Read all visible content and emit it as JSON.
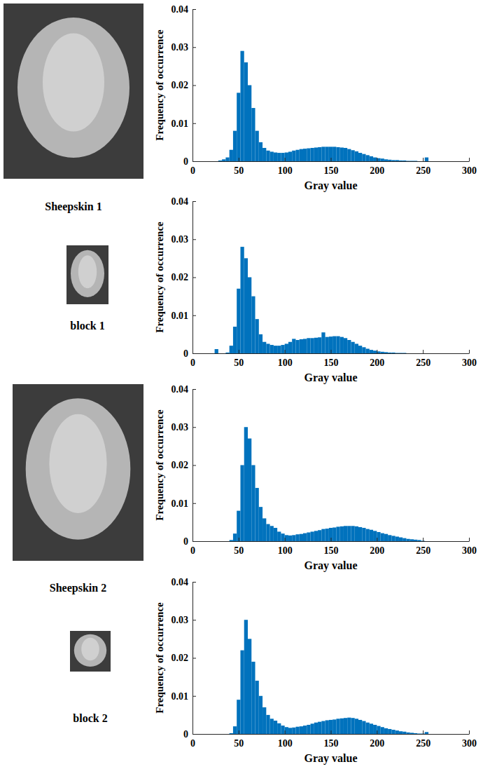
{
  "chart_data": [
    {
      "type": "histogram",
      "title": "Sheepskin 1",
      "x_label": "Gray value",
      "y_label": "Frequency of occurrence",
      "color": "#0072bd",
      "grid": false,
      "xlim": [
        0,
        300
      ],
      "xticks": [
        0,
        50,
        100,
        150,
        200,
        250,
        300
      ],
      "ylim": [
        0,
        0.04
      ],
      "yticks": [
        0,
        0.01,
        0.02,
        0.03,
        0.04
      ],
      "bins": [
        20,
        24,
        28,
        32,
        36,
        40,
        44,
        48,
        52,
        56,
        60,
        64,
        68,
        72,
        76,
        80,
        84,
        88,
        92,
        96,
        100,
        104,
        108,
        112,
        116,
        120,
        124,
        128,
        132,
        136,
        140,
        144,
        148,
        152,
        156,
        160,
        164,
        168,
        172,
        176,
        180,
        184,
        188,
        192,
        196,
        200,
        204,
        208,
        212,
        216,
        220,
        224,
        228,
        232,
        236,
        240,
        244,
        248,
        252,
        256
      ],
      "values": [
        0,
        0,
        0.0002,
        0.0005,
        0.001,
        0.003,
        0.008,
        0.018,
        0.029,
        0.026,
        0.02,
        0.014,
        0.008,
        0.005,
        0.0035,
        0.0028,
        0.0025,
        0.0023,
        0.0022,
        0.0022,
        0.0023,
        0.0025,
        0.0028,
        0.003,
        0.0032,
        0.0033,
        0.0034,
        0.0035,
        0.0036,
        0.0037,
        0.0038,
        0.0038,
        0.0038,
        0.0038,
        0.0037,
        0.0036,
        0.0035,
        0.0032,
        0.0029,
        0.0026,
        0.0022,
        0.0019,
        0.0016,
        0.0013,
        0.001,
        0.0008,
        0.0007,
        0.0005,
        0.0004,
        0.0003,
        0.0003,
        0.0002,
        0.0002,
        0.0001,
        0.0001,
        0.0001,
        0,
        0,
        0.001
      ]
    },
    {
      "type": "histogram",
      "title": "block 1",
      "x_label": "Gray value",
      "y_label": "Frequency of occurrence",
      "color": "#0072bd",
      "grid": false,
      "xlim": [
        0,
        300
      ],
      "xticks": [
        0,
        50,
        100,
        150,
        200,
        250,
        300
      ],
      "ylim": [
        0,
        0.04
      ],
      "yticks": [
        0,
        0.01,
        0.02,
        0.03,
        0.04
      ],
      "bins": [
        20,
        24,
        28,
        32,
        36,
        40,
        44,
        48,
        52,
        56,
        60,
        64,
        68,
        72,
        76,
        80,
        84,
        88,
        92,
        96,
        100,
        104,
        108,
        112,
        116,
        120,
        124,
        128,
        132,
        136,
        140,
        144,
        148,
        152,
        156,
        160,
        164,
        168,
        172,
        176,
        180,
        184,
        188,
        192,
        196,
        200,
        204,
        208,
        212,
        216,
        220,
        224,
        228,
        232,
        236,
        240,
        244,
        248,
        252,
        256
      ],
      "values": [
        0,
        0.0011,
        0,
        0,
        0.0002,
        0.002,
        0.007,
        0.017,
        0.028,
        0.025,
        0.02,
        0.015,
        0.009,
        0.005,
        0.003,
        0.0025,
        0.0022,
        0.002,
        0.002,
        0.0022,
        0.0025,
        0.003,
        0.0038,
        0.0035,
        0.0037,
        0.0038,
        0.004,
        0.004,
        0.0041,
        0.0042,
        0.0055,
        0.0043,
        0.0044,
        0.0045,
        0.0045,
        0.0043,
        0.004,
        0.0035,
        0.003,
        0.0025,
        0.002,
        0.0016,
        0.0012,
        0.0009,
        0.0007,
        0.0005,
        0.0004,
        0.0003,
        0.0002,
        0.0002,
        0.0001,
        0.0001,
        0.0001,
        0,
        0,
        0,
        0,
        0,
        0
      ]
    },
    {
      "type": "histogram",
      "title": "Sheepskin 2",
      "x_label": "Gray value",
      "y_label": "Frequency of occurrence",
      "color": "#0072bd",
      "grid": false,
      "xlim": [
        0,
        300
      ],
      "xticks": [
        0,
        50,
        100,
        150,
        200,
        250,
        300
      ],
      "ylim": [
        0,
        0.04
      ],
      "yticks": [
        0,
        0.01,
        0.02,
        0.03,
        0.04
      ],
      "bins": [
        20,
        24,
        28,
        32,
        36,
        40,
        44,
        48,
        52,
        56,
        60,
        64,
        68,
        72,
        76,
        80,
        84,
        88,
        92,
        96,
        100,
        104,
        108,
        112,
        116,
        120,
        124,
        128,
        132,
        136,
        140,
        144,
        148,
        152,
        156,
        160,
        164,
        168,
        172,
        176,
        180,
        184,
        188,
        192,
        196,
        200,
        204,
        208,
        212,
        216,
        220,
        224,
        228,
        232,
        236,
        240,
        244,
        248,
        252,
        256
      ],
      "values": [
        0,
        0,
        0,
        0,
        0,
        0.0003,
        0.002,
        0.008,
        0.02,
        0.03,
        0.027,
        0.02,
        0.014,
        0.009,
        0.006,
        0.0045,
        0.004,
        0.0035,
        0.0025,
        0.002,
        0.0016,
        0.0015,
        0.0016,
        0.0018,
        0.0019,
        0.0021,
        0.0023,
        0.0025,
        0.0027,
        0.0029,
        0.0032,
        0.0033,
        0.0035,
        0.0036,
        0.0038,
        0.0039,
        0.004,
        0.004,
        0.004,
        0.0039,
        0.0037,
        0.0035,
        0.0032,
        0.003,
        0.0027,
        0.0024,
        0.0021,
        0.0019,
        0.0016,
        0.0014,
        0.0012,
        0.001,
        0.0008,
        0.0006,
        0.0005,
        0.0004,
        0.0003,
        0.0001,
        0
      ]
    },
    {
      "type": "histogram",
      "title": "block 2",
      "x_label": "Gray value",
      "y_label": "Frequency of occurrence",
      "color": "#0072bd",
      "grid": false,
      "xlim": [
        0,
        300
      ],
      "xticks": [
        0,
        50,
        100,
        150,
        200,
        250,
        300
      ],
      "ylim": [
        0,
        0.04
      ],
      "yticks": [
        0,
        0.01,
        0.02,
        0.03,
        0.04
      ],
      "bins": [
        20,
        24,
        28,
        32,
        36,
        40,
        44,
        48,
        52,
        56,
        60,
        64,
        68,
        72,
        76,
        80,
        84,
        88,
        92,
        96,
        100,
        104,
        108,
        112,
        116,
        120,
        124,
        128,
        132,
        136,
        140,
        144,
        148,
        152,
        156,
        160,
        164,
        168,
        172,
        176,
        180,
        184,
        188,
        192,
        196,
        200,
        204,
        208,
        212,
        216,
        220,
        224,
        228,
        232,
        236,
        240,
        244,
        248,
        252,
        256
      ],
      "values": [
        0,
        0,
        0,
        0,
        0,
        0.0002,
        0.002,
        0.009,
        0.022,
        0.03,
        0.025,
        0.019,
        0.014,
        0.01,
        0.007,
        0.005,
        0.004,
        0.0035,
        0.0028,
        0.0022,
        0.0018,
        0.0016,
        0.0017,
        0.0019,
        0.002,
        0.0022,
        0.0024,
        0.0027,
        0.003,
        0.0032,
        0.0034,
        0.0036,
        0.0037,
        0.0038,
        0.004,
        0.0041,
        0.0042,
        0.0043,
        0.0042,
        0.004,
        0.0037,
        0.0034,
        0.003,
        0.0027,
        0.0024,
        0.0021,
        0.0018,
        0.0015,
        0.0013,
        0.0011,
        0.0009,
        0.0007,
        0.0006,
        0.0004,
        0.0003,
        0.0002,
        0.0001,
        0.0001,
        0.0005
      ]
    }
  ]
}
